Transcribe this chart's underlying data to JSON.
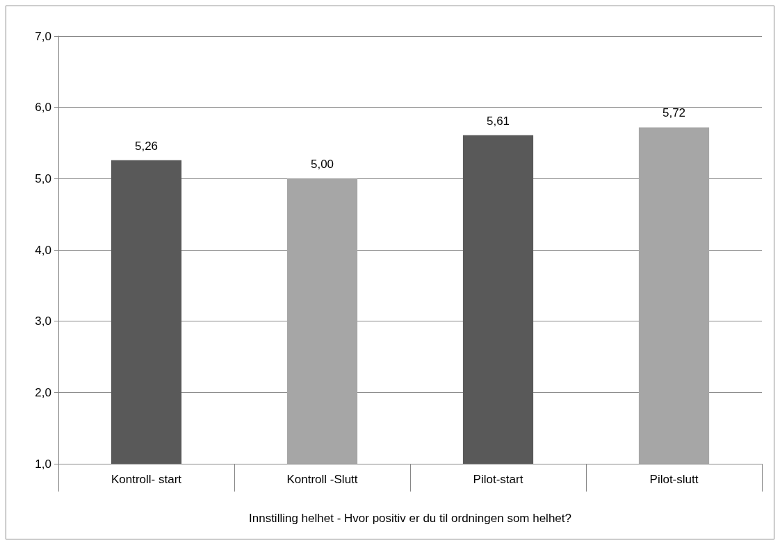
{
  "chart_data": {
    "type": "bar",
    "xlabel": "Innstilling helhet - Hvor positiv er du til ordningen som helhet?",
    "categories": [
      "Kontroll- start",
      "Kontroll -Slutt",
      "Pilot-start",
      "Pilot-slutt"
    ],
    "values": [
      5.26,
      5.0,
      5.61,
      5.72
    ],
    "colors": [
      "#595959",
      "#a6a6a6",
      "#595959",
      "#a6a6a6"
    ],
    "value_labels": [
      "5,26",
      "5,00",
      "5,61",
      "5,72"
    ],
    "ylim": [
      1,
      7
    ],
    "yticks": [
      {
        "value": 1,
        "label": "1,0"
      },
      {
        "value": 2,
        "label": "2,0"
      },
      {
        "value": 3,
        "label": "3,0"
      },
      {
        "value": 4,
        "label": "4,0"
      },
      {
        "value": 5,
        "label": "5,0"
      },
      {
        "value": 6,
        "label": "6,0"
      },
      {
        "value": 7,
        "label": "7,0"
      }
    ],
    "grid": "y"
  }
}
